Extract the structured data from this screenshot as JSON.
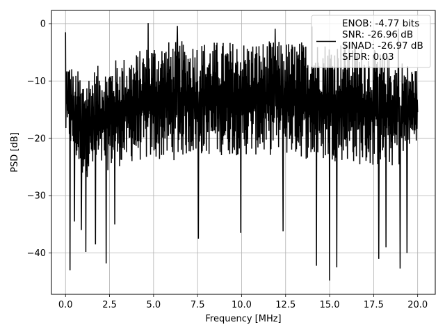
{
  "chart_data": {
    "type": "line",
    "xlabel": "Frequency [MHz]",
    "ylabel": "PSD [dB]",
    "xlim": [
      -0.8,
      21.0
    ],
    "ylim": [
      -47.2,
      2.3
    ],
    "xticks": [
      0.0,
      2.5,
      5.0,
      7.5,
      10.0,
      12.5,
      15.0,
      17.5,
      20.0
    ],
    "xtick_labels": [
      "0.0",
      "2.5",
      "5.0",
      "7.5",
      "10.0",
      "12.5",
      "15.0",
      "17.5",
      "20.0"
    ],
    "yticks": [
      0,
      -10,
      -20,
      -30,
      -40
    ],
    "ytick_labels": [
      "0",
      "−10",
      "−20",
      "−30",
      "−40"
    ],
    "grid": true,
    "legend_position": "top-right",
    "series": [
      {
        "legend_lines": [
          "ENOB: -4.77 bits",
          "SNR: -26.96 dB",
          "SINAD: -26.97 dB",
          "SFDR: 0.03"
        ],
        "color": "#000000",
        "x_start": 0.0,
        "x_end": 20.0,
        "num_points": 1024,
        "band_min": [
          [
            0.0,
            -20
          ],
          [
            1.0,
            -27
          ],
          [
            2.0,
            -26
          ],
          [
            3.0,
            -25
          ],
          [
            4.0,
            -24
          ],
          [
            5.0,
            -24
          ],
          [
            6.0,
            -24
          ],
          [
            7.0,
            -23
          ],
          [
            8.0,
            -23
          ],
          [
            9.0,
            -23
          ],
          [
            10.0,
            -23
          ],
          [
            11.0,
            -23
          ],
          [
            12.0,
            -23
          ],
          [
            13.0,
            -23
          ],
          [
            14.0,
            -24
          ],
          [
            15.0,
            -24
          ],
          [
            16.0,
            -24
          ],
          [
            17.0,
            -25
          ],
          [
            18.0,
            -25
          ],
          [
            19.0,
            -25
          ],
          [
            20.0,
            -20
          ]
        ],
        "band_max": [
          [
            0.0,
            -6
          ],
          [
            1.0,
            -9
          ],
          [
            2.0,
            -7
          ],
          [
            3.0,
            -6
          ],
          [
            4.0,
            -5
          ],
          [
            5.0,
            -3
          ],
          [
            6.0,
            -3
          ],
          [
            7.0,
            -3
          ],
          [
            8.0,
            -3
          ],
          [
            9.0,
            -3
          ],
          [
            10.0,
            -3
          ],
          [
            11.0,
            -3
          ],
          [
            12.0,
            -3
          ],
          [
            13.0,
            -3
          ],
          [
            14.0,
            -3
          ],
          [
            15.0,
            -3
          ],
          [
            16.0,
            -3
          ],
          [
            17.0,
            -4
          ],
          [
            18.0,
            -5
          ],
          [
            19.0,
            -6
          ],
          [
            20.0,
            -8
          ]
        ],
        "peaks": [
          [
            0.0,
            -1.5
          ],
          [
            4.7,
            0.1
          ],
          [
            6.35,
            -0.4
          ],
          [
            11.9,
            -0.9
          ],
          [
            14.0,
            -0.5
          ],
          [
            18.9,
            -0.9
          ]
        ],
        "dips": [
          [
            0.25,
            -43.0
          ],
          [
            0.5,
            -34.5
          ],
          [
            0.9,
            -36.0
          ],
          [
            1.15,
            -39.8
          ],
          [
            1.7,
            -38.5
          ],
          [
            2.3,
            -41.8
          ],
          [
            2.8,
            -35.0
          ],
          [
            7.55,
            -37.5
          ],
          [
            9.95,
            -36.5
          ],
          [
            12.35,
            -36.2
          ],
          [
            14.25,
            -42.2
          ],
          [
            15.0,
            -44.8
          ],
          [
            15.4,
            -42.5
          ],
          [
            17.8,
            -41.0
          ],
          [
            18.2,
            -39.0
          ],
          [
            19.0,
            -42.7
          ],
          [
            19.4,
            -40.0
          ]
        ]
      }
    ]
  }
}
